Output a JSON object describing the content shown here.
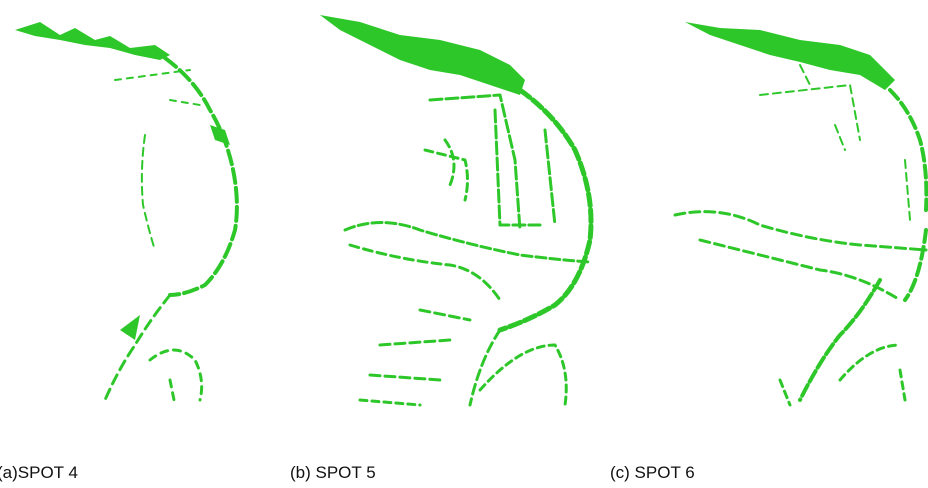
{
  "captions": [
    "(a)SPOT 4",
    "(b) SPOT 5",
    "(c) SPOT 6"
  ]
}
